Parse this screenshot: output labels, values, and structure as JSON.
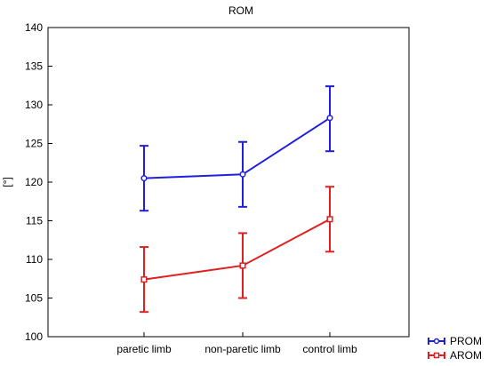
{
  "chart_data": {
    "type": "line",
    "title": "ROM",
    "xlabel": "",
    "ylabel": "[°]",
    "categories": [
      "paretic limb",
      "non-paretic limb",
      "control limb"
    ],
    "ylim": [
      100,
      140
    ],
    "yticks": [
      100,
      105,
      110,
      115,
      120,
      125,
      130,
      135,
      140
    ],
    "grid": false,
    "legend_position": "bottom-right",
    "series": [
      {
        "name": "PROM",
        "color": "#1f1fe0",
        "marker": "circle",
        "values": [
          120.5,
          121.0,
          128.3
        ],
        "error_low": [
          116.3,
          116.8,
          124.0
        ],
        "error_high": [
          124.7,
          125.2,
          132.4
        ]
      },
      {
        "name": "AROM",
        "color": "#e02020",
        "marker": "square",
        "values": [
          107.4,
          109.2,
          115.2
        ],
        "error_low": [
          103.2,
          105.0,
          111.0
        ],
        "error_high": [
          111.6,
          113.4,
          119.4
        ]
      }
    ]
  }
}
